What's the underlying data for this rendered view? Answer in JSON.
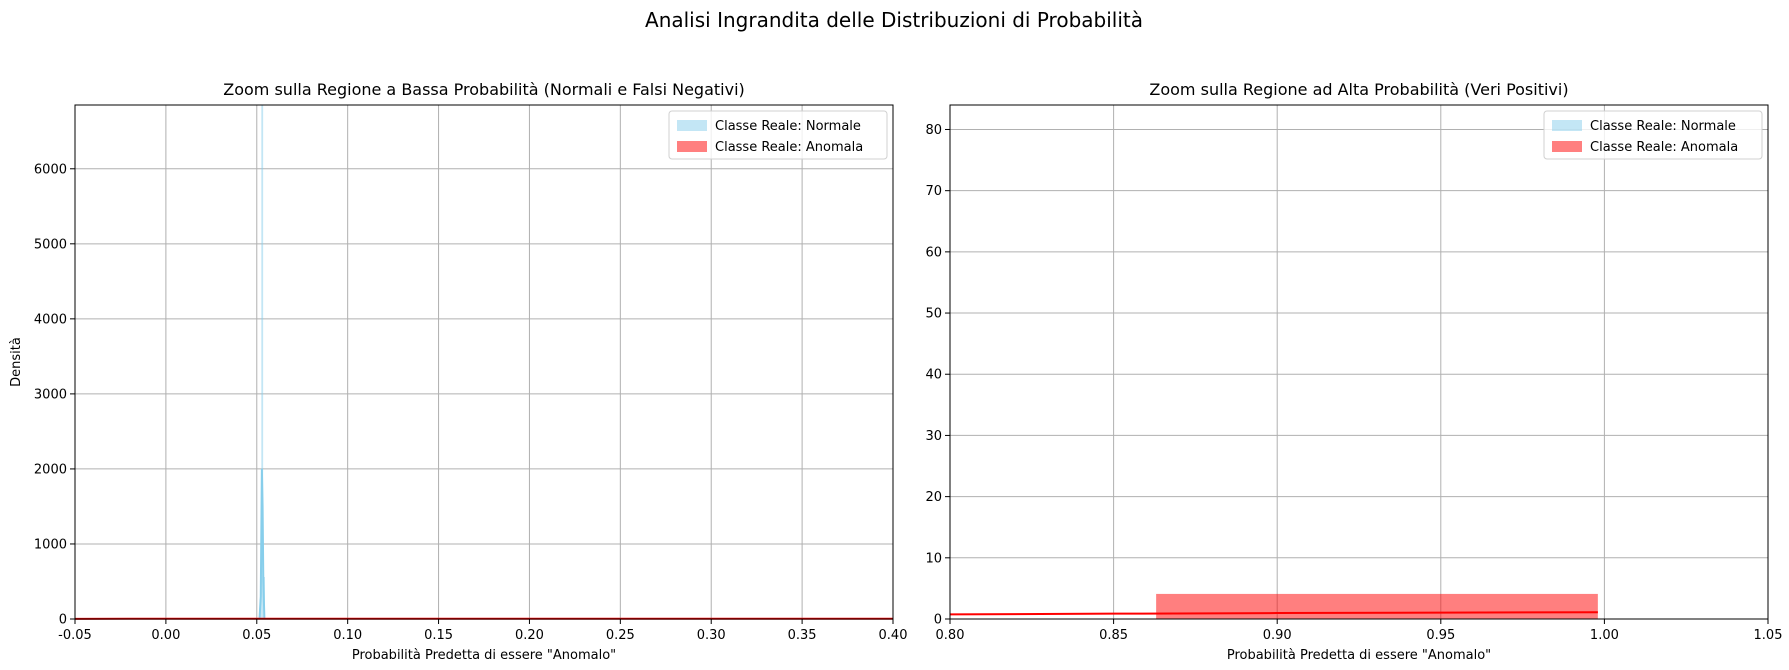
{
  "figure": {
    "suptitle": "Analisi Ingrandita delle Distribuzioni di Probabilità"
  },
  "chart_data": [
    {
      "type": "histogram",
      "title": "Zoom sulla Regione a Bassa Probabilità (Normali e Falsi Negativi)",
      "xlabel": "Probabilità Predetta di essere \"Anomalo\"",
      "ylabel": "Densità",
      "xlim": [
        -0.05,
        0.4
      ],
      "ylim": [
        0,
        6850
      ],
      "xticks": [
        -0.05,
        0.0,
        0.05,
        0.1,
        0.15,
        0.2,
        0.25,
        0.3,
        0.35,
        0.4
      ],
      "xtick_labels": [
        "-0.05",
        "0.00",
        "0.05",
        "0.10",
        "0.15",
        "0.20",
        "0.25",
        "0.30",
        "0.35",
        "0.40"
      ],
      "yticks": [
        0,
        1000,
        2000,
        3000,
        4000,
        5000,
        6000
      ],
      "ytick_labels": [
        "0",
        "1000",
        "2000",
        "3000",
        "4000",
        "5000",
        "6000"
      ],
      "grid": true,
      "legend": "top-right",
      "series": [
        {
          "name": "Classe Reale: Normale",
          "color": "#87ceeb",
          "bars": [
            {
              "x0": 0.0515,
              "x1": 0.0525,
              "height": 260
            },
            {
              "x0": 0.0525,
              "x1": 0.0535,
              "height": 6850
            },
            {
              "x0": 0.0535,
              "x1": 0.0545,
              "height": 560
            }
          ],
          "kde": {
            "x": [
              0.0515,
              0.0522,
              0.0528,
              0.0532,
              0.0536,
              0.0542
            ],
            "y": [
              0,
              300,
              2000,
              1500,
              500,
              0
            ]
          }
        },
        {
          "name": "Classe Reale: Anomala",
          "color": "#ff0000",
          "bars": [],
          "kde": {
            "x": [
              -0.05,
              0.0,
              0.1,
              0.2,
              0.3,
              0.4
            ],
            "y": [
              2,
              3,
              3,
              3,
              3,
              3
            ]
          }
        }
      ]
    },
    {
      "type": "histogram",
      "title": "Zoom sulla Regione ad Alta Probabilità (Veri Positivi)",
      "xlabel": "Probabilità Predetta di essere \"Anomalo\"",
      "ylabel": "",
      "xlim": [
        0.8,
        1.05
      ],
      "ylim": [
        0,
        84
      ],
      "xticks": [
        0.8,
        0.85,
        0.9,
        0.95,
        1.0,
        1.05
      ],
      "xtick_labels": [
        "0.80",
        "0.85",
        "0.90",
        "0.95",
        "1.00",
        "1.05"
      ],
      "yticks": [
        0,
        10,
        20,
        30,
        40,
        50,
        60,
        70,
        80
      ],
      "ytick_labels": [
        "0",
        "10",
        "20",
        "30",
        "40",
        "50",
        "60",
        "70",
        "80"
      ],
      "grid": true,
      "legend": "top-right",
      "series": [
        {
          "name": "Classe Reale: Normale",
          "color": "#87ceeb",
          "bars": [],
          "kde": {
            "x": [],
            "y": []
          }
        },
        {
          "name": "Classe Reale: Anomala",
          "color": "#ff0000",
          "bars": [
            {
              "x0": 0.863,
              "x1": 0.998,
              "height": 4.1
            }
          ],
          "kde": {
            "x": [
              0.8,
              0.85,
              0.9,
              0.95,
              0.998
            ],
            "y": [
              0.75,
              0.87,
              0.97,
              1.05,
              1.1
            ]
          }
        }
      ]
    }
  ]
}
